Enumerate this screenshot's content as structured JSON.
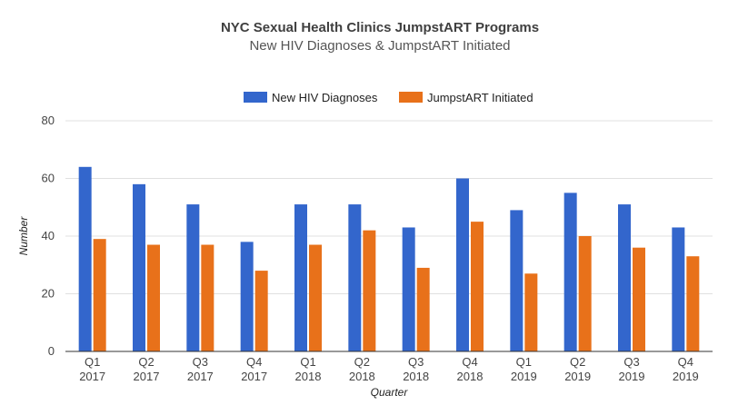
{
  "chart_data": {
    "type": "bar",
    "title": "NYC Sexual Health Clinics JumpstART Programs",
    "subtitle": "New HIV Diagnoses & JumpstART Initiated",
    "xlabel": "Quarter",
    "ylabel": "Number",
    "ylim": [
      0,
      80
    ],
    "yticks": [
      0,
      20,
      40,
      60,
      80
    ],
    "grid": true,
    "legend_position": "top",
    "categories": [
      {
        "quarter": "Q1",
        "year": "2017"
      },
      {
        "quarter": "Q2",
        "year": "2017"
      },
      {
        "quarter": "Q3",
        "year": "2017"
      },
      {
        "quarter": "Q4",
        "year": "2017"
      },
      {
        "quarter": "Q1",
        "year": "2018"
      },
      {
        "quarter": "Q2",
        "year": "2018"
      },
      {
        "quarter": "Q3",
        "year": "2018"
      },
      {
        "quarter": "Q4",
        "year": "2018"
      },
      {
        "quarter": "Q1",
        "year": "2019"
      },
      {
        "quarter": "Q2",
        "year": "2019"
      },
      {
        "quarter": "Q3",
        "year": "2019"
      },
      {
        "quarter": "Q4",
        "year": "2019"
      }
    ],
    "series": [
      {
        "name": "New HIV Diagnoses",
        "color": "#3366cc",
        "values": [
          64,
          58,
          51,
          38,
          51,
          51,
          43,
          60,
          49,
          55,
          51,
          43
        ]
      },
      {
        "name": "JumpstART Initiated",
        "color": "#e8711a",
        "values": [
          39,
          37,
          37,
          28,
          37,
          42,
          29,
          45,
          27,
          40,
          36,
          33
        ]
      }
    ]
  }
}
